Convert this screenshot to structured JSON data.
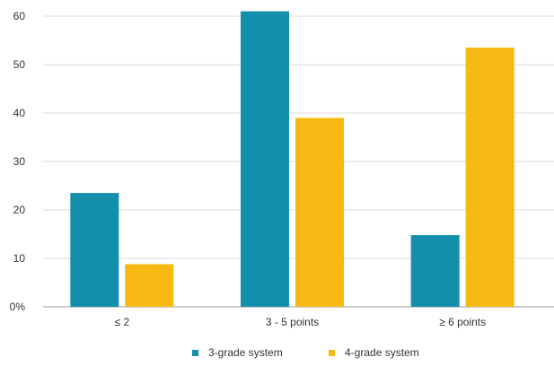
{
  "chart_data": {
    "type": "bar",
    "title": "",
    "xlabel": "",
    "ylabel": "",
    "categories": [
      "≤ 2",
      "3 - 5 points",
      "≥ 6 points"
    ],
    "series": [
      {
        "name": "3-grade system",
        "color": "#138EAB",
        "values": [
          23.5,
          61,
          14.8
        ]
      },
      {
        "name": "4-grade system",
        "color": "#F6B914",
        "values": [
          8.8,
          39,
          53.5
        ]
      }
    ],
    "ylim": [
      0,
      60
    ],
    "yticks": [
      0,
      10,
      20,
      30,
      40,
      50,
      60
    ],
    "ytick_labels": [
      "0%",
      "10",
      "20",
      "30",
      "40",
      "50",
      "60"
    ],
    "grid": true,
    "legend_position": "bottom-center"
  }
}
